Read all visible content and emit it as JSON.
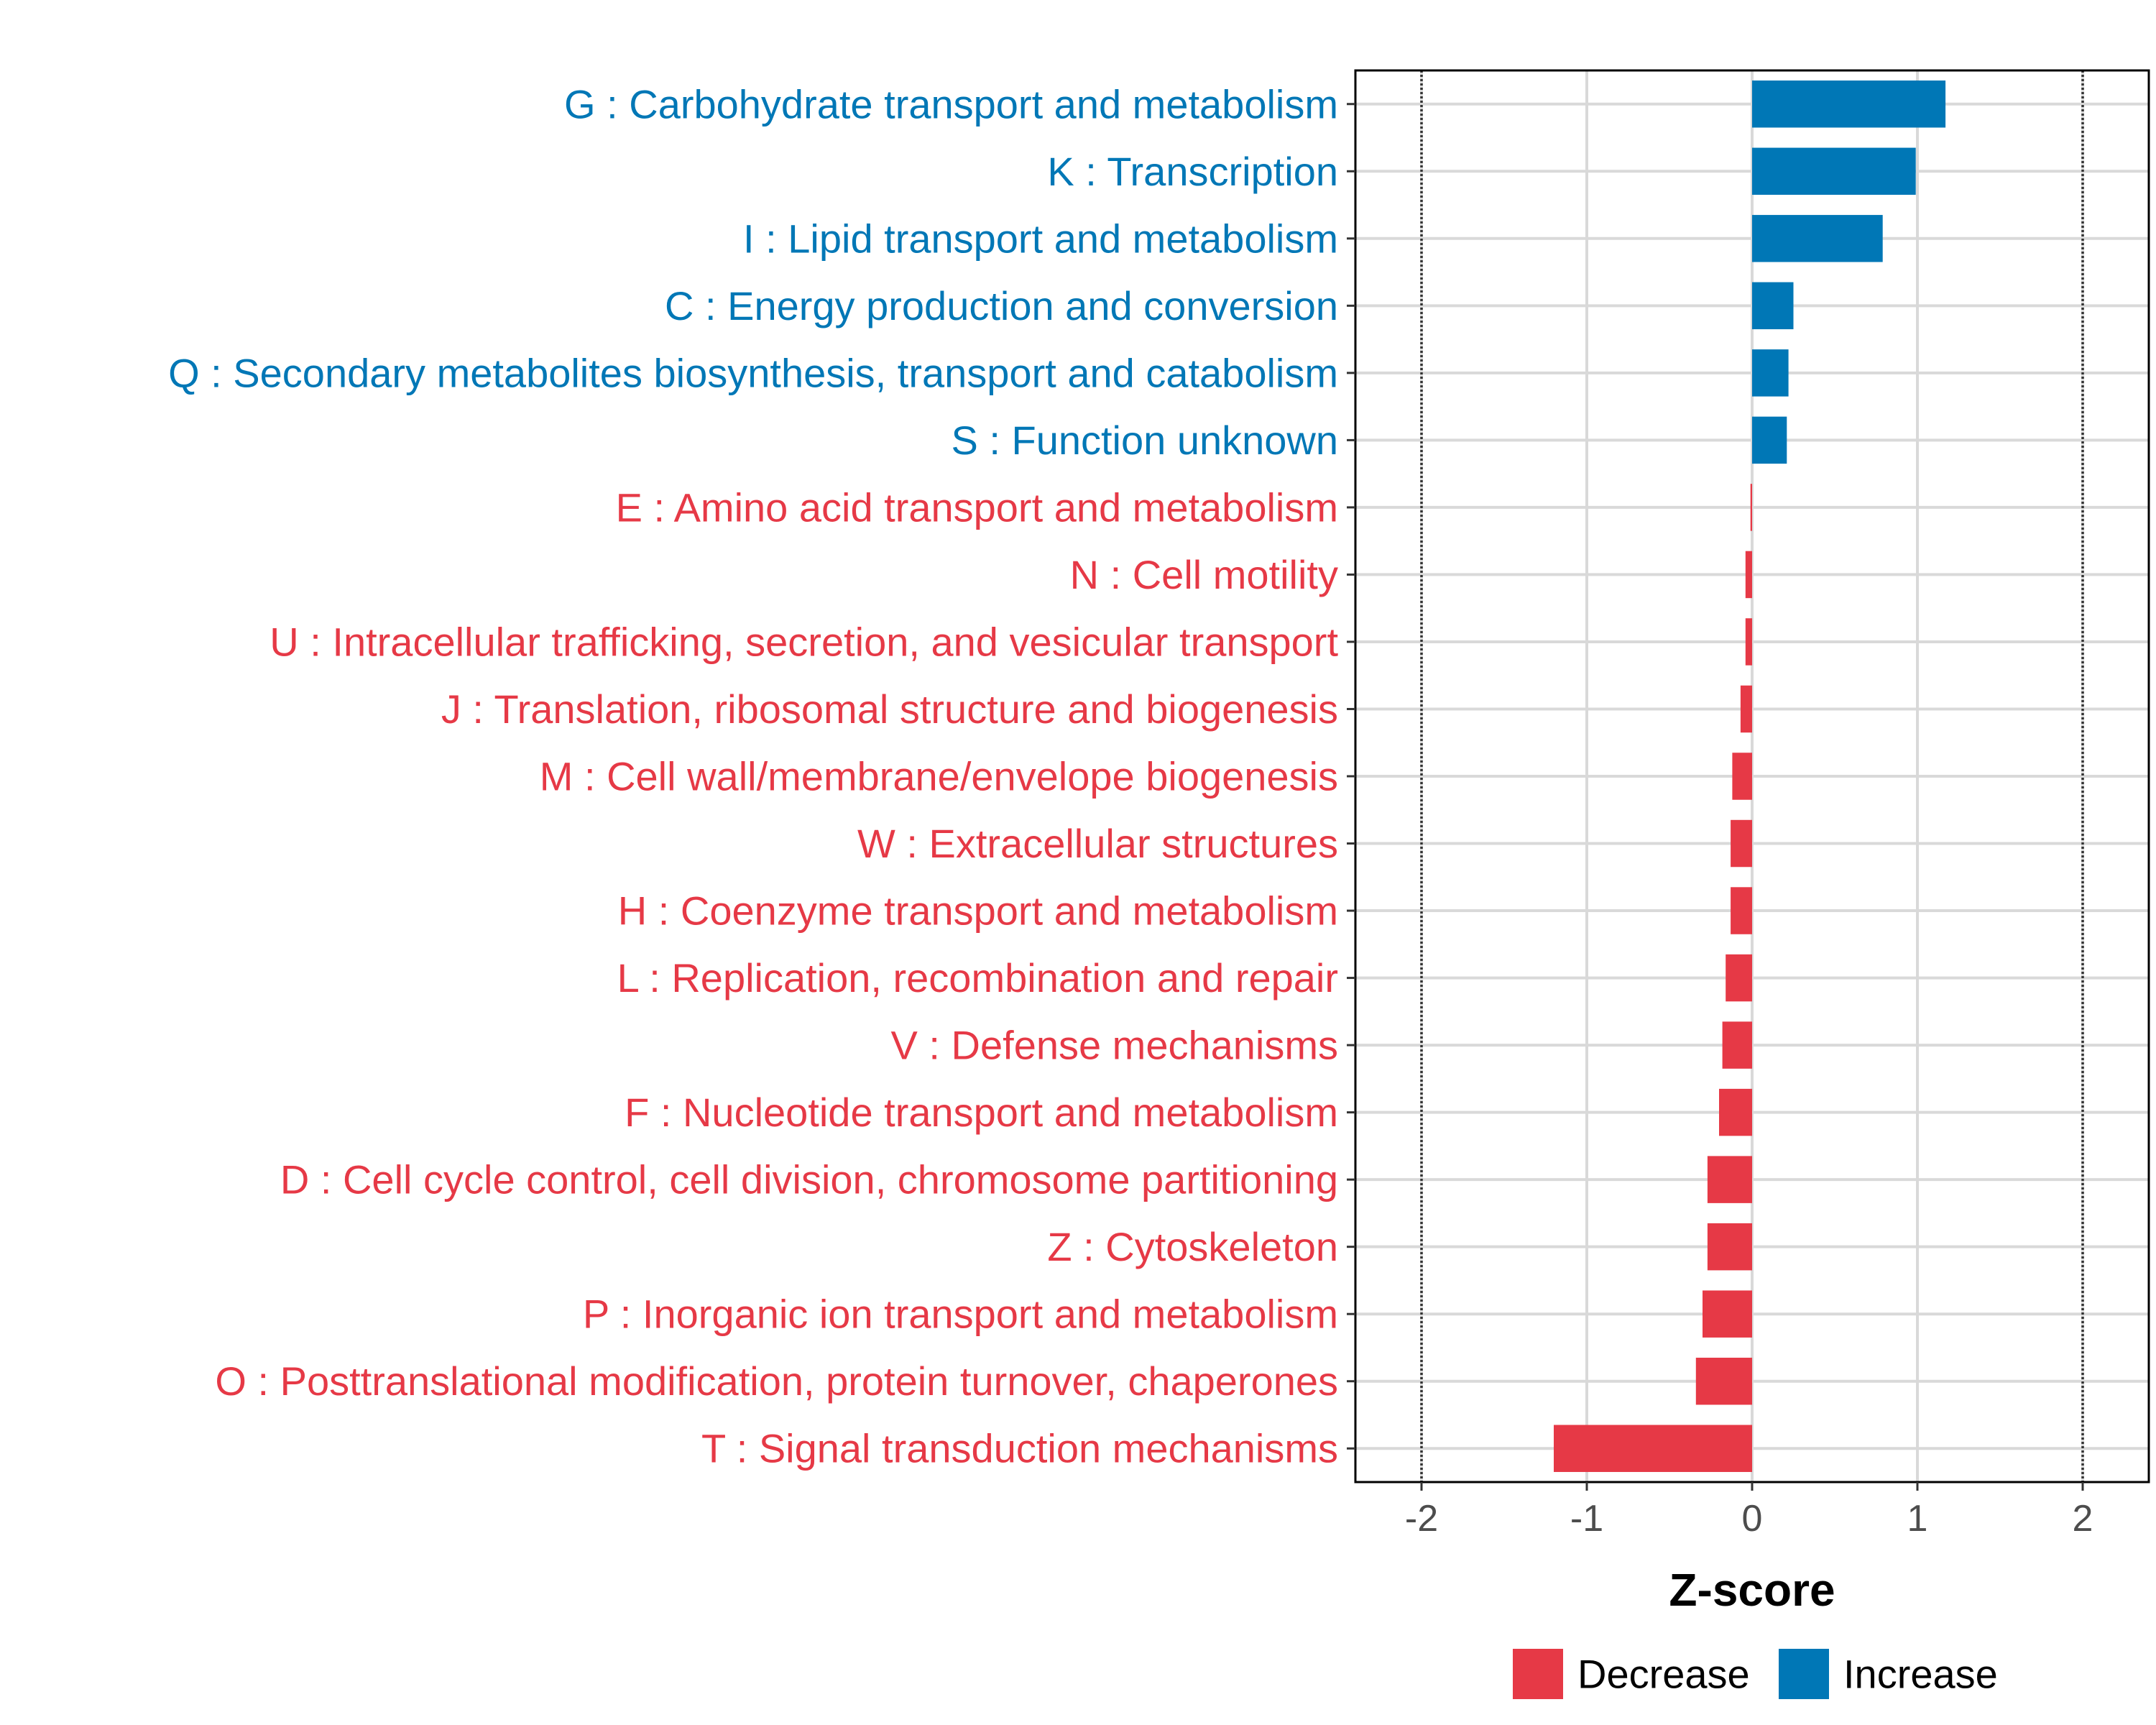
{
  "chart_data": {
    "type": "bar",
    "orientation": "horizontal",
    "xlabel": "Z-score",
    "ylabel": "",
    "xlim": [
      -2.4,
      2.4
    ],
    "xticks": [
      -2,
      -1,
      0,
      1,
      2
    ],
    "reference_lines": [
      -2,
      2
    ],
    "grid": true,
    "legend_position": "bottom",
    "colors": {
      "Decrease": "#E63946",
      "Increase": "#0077B6"
    },
    "categories": [
      "G : Carbohydrate transport and metabolism",
      "K : Transcription",
      "I : Lipid transport and metabolism",
      "C : Energy production and conversion",
      "Q : Secondary metabolites biosynthesis, transport and catabolism",
      "S : Function unknown",
      "E : Amino acid transport and metabolism",
      "N : Cell motility",
      "U : Intracellular trafficking, secretion, and vesicular transport",
      "J : Translation, ribosomal structure and biogenesis",
      "M : Cell wall/membrane/envelope biogenesis",
      "W : Extracellular structures",
      "H : Coenzyme transport and metabolism",
      "L : Replication, recombination and repair",
      "V : Defense mechanisms",
      "F : Nucleotide transport and metabolism",
      "D : Cell cycle control, cell division, chromosome partitioning",
      "Z : Cytoskeleton",
      "P : Inorganic ion transport and metabolism",
      "O : Posttranslational modification, protein turnover, chaperones",
      "T : Signal transduction mechanisms"
    ],
    "values": [
      1.17,
      0.99,
      0.79,
      0.25,
      0.22,
      0.21,
      -0.01,
      -0.04,
      -0.04,
      -0.07,
      -0.12,
      -0.13,
      -0.13,
      -0.16,
      -0.18,
      -0.2,
      -0.27,
      -0.27,
      -0.3,
      -0.34,
      -1.2
    ],
    "groups": [
      "Increase",
      "Increase",
      "Increase",
      "Increase",
      "Increase",
      "Increase",
      "Decrease",
      "Decrease",
      "Decrease",
      "Decrease",
      "Decrease",
      "Decrease",
      "Decrease",
      "Decrease",
      "Decrease",
      "Decrease",
      "Decrease",
      "Decrease",
      "Decrease",
      "Decrease",
      "Decrease"
    ],
    "legend": [
      "Decrease",
      "Increase"
    ]
  }
}
